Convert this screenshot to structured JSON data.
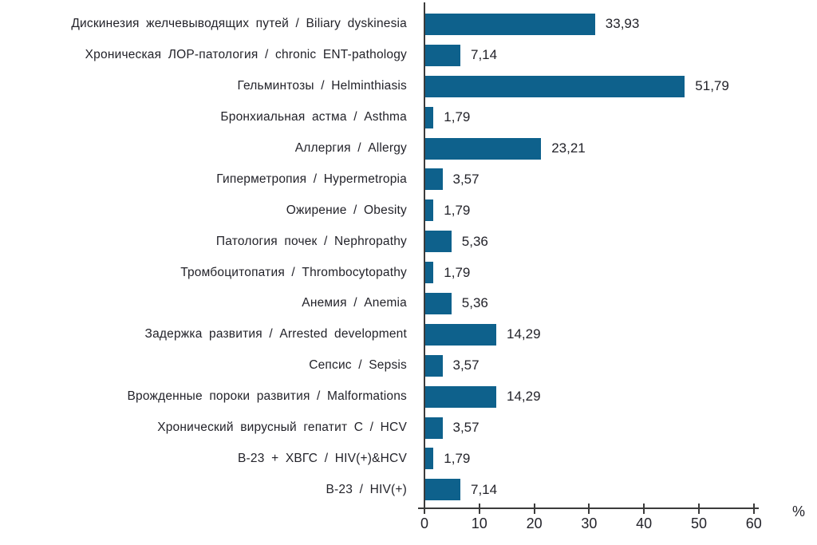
{
  "chart_data": {
    "type": "bar",
    "orientation": "horizontal",
    "title": "",
    "xlabel": "%",
    "ylabel": "",
    "xlim": [
      0,
      61
    ],
    "xticks": [
      0,
      10,
      20,
      30,
      40,
      50,
      60
    ],
    "grid": false,
    "legend": false,
    "bar_color": "#0e618c",
    "axis_color": "#3b3b3b",
    "text_color": "#23232a",
    "categories": [
      "Дискинезия желчевыводящих путей / Biliary dyskinesia",
      "Хроническая ЛОР-патология / chronic ENT-pathology",
      "Гельминтозы / Helminthiasis",
      "Бронхиальная астма / Asthma",
      "Аллергия / Allergy",
      "Гиперметропия / Hypermetropia",
      "Ожирение / Obesity",
      "Патология почек / Nephropathy",
      "Тромбоцитопатия / Thrombocytopathy",
      "Анемия / Anemia",
      "Задержка развития / Arrested development",
      "Сепсис / Sepsis",
      "Врожденные пороки развития / Malformations",
      "Хронический вирусный гепатит С / HCV",
      "В-23 + ХВГС / HIV(+)&HCV",
      "В-23 / HIV(+)"
    ],
    "values": [
      33.93,
      7.14,
      51.79,
      1.79,
      23.21,
      3.57,
      1.79,
      5.36,
      1.79,
      5.36,
      14.29,
      3.57,
      14.29,
      3.57,
      1.79,
      7.14
    ],
    "value_labels": [
      "33,93",
      "7,14",
      "51,79",
      "1,79",
      "23,21",
      "3,57",
      "1,79",
      "5,36",
      "1,79",
      "5,36",
      "14,29",
      "3,57",
      "14,29",
      "3,57",
      "1,79",
      "7,14"
    ]
  }
}
